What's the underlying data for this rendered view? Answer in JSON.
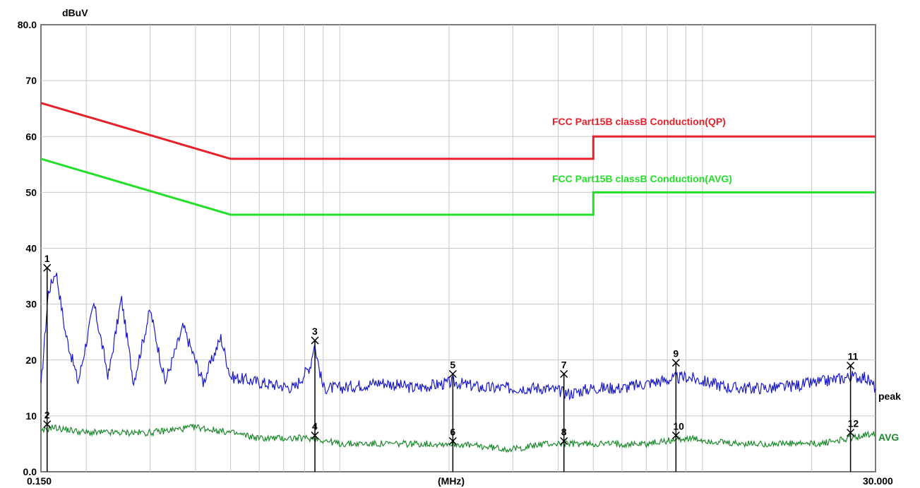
{
  "chart_data": {
    "type": "line",
    "ylabel": "dBuV",
    "xlabel": "(MHz)",
    "xscale": "log",
    "xlim": [
      0.15,
      30.0
    ],
    "ylim": [
      0,
      80
    ],
    "x_tick_labels": [
      "0.150",
      "30.000"
    ],
    "y_tick_labels": [
      "0.0",
      "10",
      "20",
      "30",
      "40",
      "50",
      "60",
      "70",
      "80.0"
    ],
    "grid": true,
    "limits": [
      {
        "name": "FCC  Part15B classB Conduction(QP)",
        "color": "#e8202a",
        "x": [
          0.15,
          0.5,
          0.5,
          5.0,
          5.0,
          30.0
        ],
        "y": [
          66,
          56,
          56,
          56,
          60,
          60
        ]
      },
      {
        "name": "FCC  Part15B classB Conduction(AVG)",
        "color": "#22e02a",
        "x": [
          0.15,
          0.5,
          0.5,
          5.0,
          5.0,
          30.0
        ],
        "y": [
          56,
          46,
          46,
          46,
          50,
          50
        ]
      }
    ],
    "series": [
      {
        "name": "peak",
        "color": "#1a1acc",
        "x": [
          0.15,
          0.157,
          0.165,
          0.175,
          0.19,
          0.21,
          0.23,
          0.25,
          0.27,
          0.3,
          0.33,
          0.37,
          0.42,
          0.47,
          0.5,
          0.6,
          0.75,
          0.83,
          0.85,
          0.9,
          1.0,
          1.3,
          1.6,
          2.05,
          2.5,
          3.0,
          3.65,
          4.3,
          5.0,
          6.0,
          7.3,
          9.0,
          12.0,
          16.0,
          21.0,
          25.5,
          28.0,
          30.0
        ],
        "y": [
          15,
          32,
          36,
          25,
          16,
          30,
          17,
          31,
          16,
          29,
          16,
          26,
          16,
          24,
          17,
          16,
          15,
          19,
          23,
          15,
          15,
          16,
          15,
          16,
          15,
          15,
          15,
          14,
          15,
          15,
          16,
          17,
          15,
          15,
          16,
          17,
          17,
          15
        ]
      },
      {
        "name": "AVG",
        "color": "#1c8a2c",
        "x": [
          0.15,
          0.16,
          0.2,
          0.25,
          0.3,
          0.4,
          0.5,
          0.6,
          0.85,
          1.0,
          1.5,
          2.05,
          3.0,
          3.65,
          5.0,
          7.0,
          9.0,
          12.0,
          16.0,
          21.0,
          25.5,
          30.0
        ],
        "y": [
          7,
          8,
          7,
          7,
          7,
          8,
          7,
          6,
          6,
          5,
          5,
          5,
          4,
          5,
          5,
          5,
          6,
          5,
          5,
          5,
          6,
          7
        ]
      }
    ],
    "markers": [
      {
        "label": "1",
        "x": 0.156,
        "y": 36.5
      },
      {
        "label": "2",
        "x": 0.156,
        "y": 8.5
      },
      {
        "label": "3",
        "x": 0.854,
        "y": 23.5
      },
      {
        "label": "4",
        "x": 0.854,
        "y": 6.5
      },
      {
        "label": "5",
        "x": 2.05,
        "y": 17.5
      },
      {
        "label": "6",
        "x": 2.05,
        "y": 5.5
      },
      {
        "label": "7",
        "x": 4.15,
        "y": 17.5
      },
      {
        "label": "8",
        "x": 4.15,
        "y": 5.5
      },
      {
        "label": "9",
        "x": 8.45,
        "y": 19.5
      },
      {
        "label": "10",
        "x": 8.45,
        "y": 6.5
      },
      {
        "label": "11",
        "x": 25.6,
        "y": 19
      },
      {
        "label": "12",
        "x": 25.6,
        "y": 7
      }
    ]
  }
}
